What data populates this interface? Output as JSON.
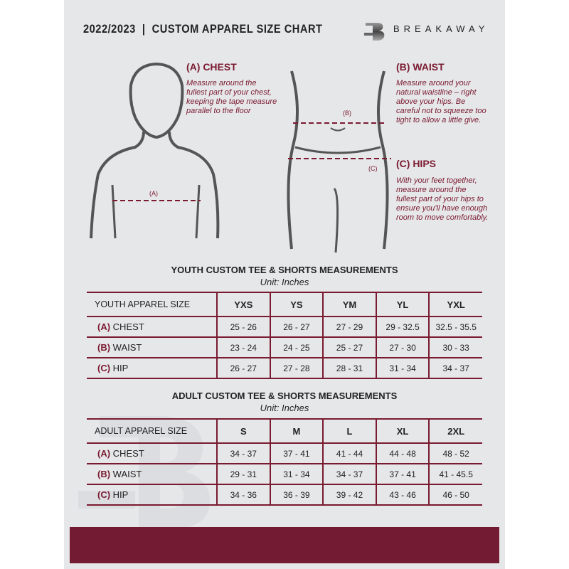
{
  "header": {
    "title": "2022/2023  |  CUSTOM APPAREL SIZE CHART",
    "brand": "BREAKAWAY",
    "logo_letter": "B"
  },
  "measures": {
    "chest": {
      "label": "(A)",
      "head": "(A) CHEST",
      "text": "Measure around the fullest part of your chest, keeping the tape measure parallel to the floor"
    },
    "waist": {
      "label": "(B)",
      "head": "(B) WAIST",
      "text": "Measure around your natural waistline – right above your hips. Be careful not to squeeze too tight to allow a little give."
    },
    "hips": {
      "label": "(C)",
      "head": "(C) HIPS",
      "text": "With your feet together, measure around the fullest part of your hips to ensure you'll have enough room to move comfortably."
    }
  },
  "youth": {
    "title": "YOUTH CUSTOM TEE & SHORTS MEASUREMENTS",
    "unit": "Unit: Inches",
    "header": [
      "YOUTH APPAREL SIZE",
      "YXS",
      "YS",
      "YM",
      "YL",
      "YXL"
    ],
    "rows": [
      {
        "code": "(A)",
        "name": "CHEST",
        "values": [
          "25 - 26",
          "26 - 27",
          "27 - 29",
          "29 - 32.5",
          "32.5 - 35.5"
        ]
      },
      {
        "code": "(B)",
        "name": "WAIST",
        "values": [
          "23 - 24",
          "24 - 25",
          "25 - 27",
          "27 - 30",
          "30 - 33"
        ]
      },
      {
        "code": "(C)",
        "name": "HIP",
        "values": [
          "26 - 27",
          "27 - 28",
          "28 - 31",
          "31 - 34",
          "34 - 37"
        ]
      }
    ]
  },
  "adult": {
    "title": "ADULT CUSTOM TEE & SHORTS MEASUREMENTS",
    "unit": "Unit: Inches",
    "header": [
      "ADULT APPAREL SIZE",
      "S",
      "M",
      "L",
      "XL",
      "2XL"
    ],
    "rows": [
      {
        "code": "(A)",
        "name": "CHEST",
        "values": [
          "34 - 37",
          "37 - 41",
          "41 - 44",
          "44 - 48",
          "48 - 52"
        ]
      },
      {
        "code": "(B)",
        "name": "WAIST",
        "values": [
          "29 - 31",
          "31 - 34",
          "34 - 37",
          "37 - 41",
          "41 - 45.5"
        ]
      },
      {
        "code": "(C)",
        "name": "HIP",
        "values": [
          "34 - 36",
          "36 - 39",
          "39 - 42",
          "43 - 46",
          "46 - 50"
        ]
      }
    ]
  },
  "colors": {
    "accent": "#7a1a30",
    "footer": "#731b32",
    "background": "#e6e7e9"
  }
}
